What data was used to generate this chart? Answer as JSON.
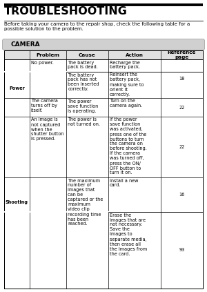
{
  "title": "TROUBLESHOOTING",
  "subtitle": "Before taking your camera to the repair shop, check the following table for a\npossible solution to the problem.",
  "section": "CAMERA",
  "col_headers": [
    "Problem",
    "Cause",
    "Action",
    "Reference\npage"
  ],
  "bg_color": "#ffffff",
  "header_bg": "#e0e0e0",
  "section_bg": "#d0d0d0",
  "text_color": "#000000",
  "title_fontsize": 11.5,
  "subtitle_fontsize": 5.0,
  "section_fontsize": 6.5,
  "header_fontsize": 5.2,
  "cell_fontsize": 4.7
}
